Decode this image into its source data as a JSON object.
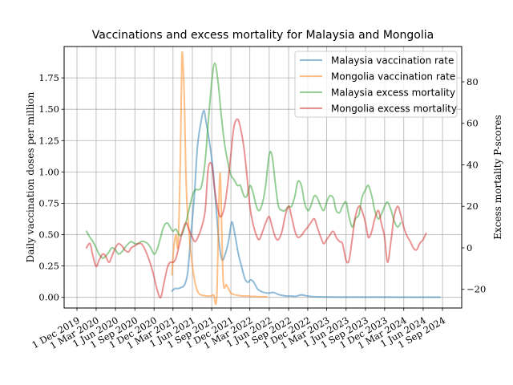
{
  "chart_data": {
    "type": "line",
    "title": "Vaccinations and excess mortality for Malaysia and Mongolia",
    "ylabel": "Daily vaccination doses per million",
    "ylabel_right": "Excess mortality P-scores",
    "ylim": [
      -0.085,
      2.0
    ],
    "ylim_right": [
      -29,
      97
    ],
    "yticks": [
      0.0,
      0.25,
      0.5,
      0.75,
      1.0,
      1.25,
      1.5,
      1.75
    ],
    "ytick_labels": [
      "0.00",
      "0.25",
      "0.50",
      "0.75",
      "1.00",
      "1.25",
      "1.50",
      "1.75"
    ],
    "yticks_right": [
      -20,
      0,
      20,
      40,
      60,
      80
    ],
    "ytick_labels_right": [
      "−20",
      "0",
      "20",
      "40",
      "60",
      "80"
    ],
    "xlim": [
      "2019-10-01",
      "2024-12-01"
    ],
    "xticks": [
      "2019-12-01",
      "2020-03-01",
      "2020-06-01",
      "2020-09-01",
      "2020-12-01",
      "2021-03-01",
      "2021-06-01",
      "2021-09-01",
      "2021-12-01",
      "2022-03-01",
      "2022-06-01",
      "2022-09-01",
      "2022-12-01",
      "2023-03-01",
      "2023-06-01",
      "2023-09-01",
      "2023-12-01",
      "2024-03-01",
      "2024-06-01",
      "2024-09-01"
    ],
    "xtick_labels": [
      "1 Dec 2019",
      "1 Mar 2020",
      "1 Jun 2020",
      "1 Sep 2020",
      "1 Dec 2020",
      "1 Mar 2021",
      "1 Jun 2021",
      "1 Sep 2021",
      "1 Dec 2021",
      "1 Mar 2022",
      "1 Jun 2022",
      "1 Sep 2022",
      "1 Dec 2022",
      "1 Mar 2023",
      "1 Jun 2023",
      "1 Sep 2023",
      "1 Dec 2023",
      "1 Mar 2024",
      "1 Jun 2024",
      "1 Sep 2024"
    ],
    "grid": true,
    "legend_position": "upper right",
    "series": [
      {
        "name": "Malaysia vaccination rate",
        "axis": "left",
        "color": "#1f77b4",
        "x": [
          "2021-02-24",
          "2021-03-10",
          "2021-03-25",
          "2021-04-10",
          "2021-04-25",
          "2021-05-10",
          "2021-05-25",
          "2021-06-10",
          "2021-06-25",
          "2021-07-10",
          "2021-07-25",
          "2021-08-05",
          "2021-08-20",
          "2021-09-05",
          "2021-09-20",
          "2021-10-05",
          "2021-10-20",
          "2021-11-05",
          "2021-11-20",
          "2021-12-05",
          "2021-12-20",
          "2022-01-05",
          "2022-01-20",
          "2022-02-05",
          "2022-02-20",
          "2022-03-05",
          "2022-03-20",
          "2022-04-05",
          "2022-04-20",
          "2022-05-05",
          "2022-05-20",
          "2022-06-05",
          "2022-06-20",
          "2022-07-05",
          "2022-07-20",
          "2022-08-05",
          "2022-08-20",
          "2022-09-05",
          "2022-09-20",
          "2022-10-05",
          "2022-11-01",
          "2022-12-01",
          "2023-01-01",
          "2023-02-01",
          "2023-03-01",
          "2023-04-01",
          "2023-05-01",
          "2023-06-01",
          "2023-07-01",
          "2023-09-01",
          "2023-11-01",
          "2024-01-01",
          "2024-03-01",
          "2024-05-01",
          "2024-07-01",
          "2024-08-20"
        ],
        "y": [
          0.05,
          0.07,
          0.07,
          0.08,
          0.1,
          0.2,
          0.5,
          0.8,
          1.2,
          1.38,
          1.49,
          1.4,
          1.25,
          1.05,
          0.75,
          0.45,
          0.3,
          0.35,
          0.45,
          0.6,
          0.5,
          0.35,
          0.25,
          0.15,
          0.12,
          0.14,
          0.12,
          0.07,
          0.05,
          0.04,
          0.035,
          0.035,
          0.04,
          0.03,
          0.02,
          0.015,
          0.01,
          0.01,
          0.01,
          0.008,
          0.02,
          0.01,
          0.005,
          0.004,
          0.003,
          0.003,
          0.002,
          0.002,
          0.002,
          0.002,
          0.002,
          0.002,
          0.001,
          0.001,
          0.001,
          0.001
        ]
      },
      {
        "name": "Mongolia vaccination rate",
        "axis": "left",
        "color": "#ff7f0e",
        "x": [
          "2021-02-24",
          "2021-03-05",
          "2021-03-15",
          "2021-03-25",
          "2021-04-05",
          "2021-04-12",
          "2021-04-18",
          "2021-04-25",
          "2021-05-01",
          "2021-05-08",
          "2021-05-15",
          "2021-05-25",
          "2021-06-10",
          "2021-06-25",
          "2021-07-10",
          "2021-07-25",
          "2021-08-10",
          "2021-08-25",
          "2021-09-10",
          "2021-09-25",
          "2021-10-10",
          "2021-10-25",
          "2021-11-10",
          "2021-11-25",
          "2021-12-03",
          "2021-12-10",
          "2021-12-20",
          "2022-01-05",
          "2022-01-20",
          "2022-02-05",
          "2022-02-20",
          "2022-03-05",
          "2022-03-20",
          "2022-04-05",
          "2022-04-20",
          "2022-05-05",
          "2022-05-20"
        ],
        "y": [
          0.18,
          0.4,
          0.5,
          0.42,
          1.1,
          1.9,
          1.85,
          1.5,
          1.0,
          0.7,
          0.55,
          0.35,
          0.15,
          0.05,
          0.02,
          0.015,
          0.01,
          0.01,
          0.02,
          0.015,
          0.99,
          0.15,
          0.1,
          0.05,
          0.03,
          0.025,
          0.02,
          0.015,
          0.012,
          0.01,
          0.01,
          0.008,
          0.008,
          0.006,
          0.005,
          0.005,
          0.005
        ]
      },
      {
        "name": "Malaysia excess mortality",
        "axis": "right",
        "color": "#2ca02c",
        "x": [
          "2020-01-15",
          "2020-02-01",
          "2020-02-15",
          "2020-03-01",
          "2020-03-15",
          "2020-04-01",
          "2020-04-15",
          "2020-05-01",
          "2020-05-15",
          "2020-06-01",
          "2020-06-15",
          "2020-07-01",
          "2020-07-15",
          "2020-08-01",
          "2020-08-15",
          "2020-09-01",
          "2020-09-15",
          "2020-10-01",
          "2020-10-15",
          "2020-11-01",
          "2020-11-15",
          "2020-12-01",
          "2020-12-15",
          "2021-01-01",
          "2021-01-15",
          "2021-02-01",
          "2021-02-15",
          "2021-03-01",
          "2021-03-15",
          "2021-04-01",
          "2021-04-15",
          "2021-05-01",
          "2021-05-15",
          "2021-06-01",
          "2021-06-15",
          "2021-07-01",
          "2021-07-15",
          "2021-08-01",
          "2021-08-15",
          "2021-09-01",
          "2021-09-15",
          "2021-10-01",
          "2021-10-15",
          "2021-11-01",
          "2021-11-15",
          "2021-12-01",
          "2021-12-15",
          "2022-01-01",
          "2022-01-15",
          "2022-02-01",
          "2022-02-15",
          "2022-03-01",
          "2022-03-15",
          "2022-04-01",
          "2022-04-15",
          "2022-05-01",
          "2022-05-15",
          "2022-06-01",
          "2022-06-15",
          "2022-07-01",
          "2022-07-15",
          "2022-08-01",
          "2022-08-15",
          "2022-09-01",
          "2022-09-15",
          "2022-10-01",
          "2022-10-15",
          "2022-11-01",
          "2022-11-15",
          "2022-12-01",
          "2022-12-15",
          "2023-01-01",
          "2023-01-15",
          "2023-02-01",
          "2023-02-15",
          "2023-03-01",
          "2023-03-15",
          "2023-04-01",
          "2023-04-15",
          "2023-05-01",
          "2023-05-15",
          "2023-06-01",
          "2023-06-15",
          "2023-07-01",
          "2023-07-15",
          "2023-08-01",
          "2023-08-15",
          "2023-09-01",
          "2023-09-15",
          "2023-10-01",
          "2023-10-15",
          "2023-11-01",
          "2023-11-15",
          "2023-12-01",
          "2023-12-15",
          "2024-01-01",
          "2024-01-15",
          "2024-02-01",
          "2024-02-15"
        ],
        "y": [
          8,
          5,
          3,
          0,
          -3,
          -5,
          -4,
          -2,
          0,
          -1,
          -3,
          -2,
          0,
          2,
          3,
          2,
          2,
          3,
          3,
          2,
          0,
          -3,
          -1,
          5,
          10,
          12,
          10,
          8,
          9,
          6,
          7,
          12,
          18,
          25,
          28,
          28,
          30,
          42,
          60,
          80,
          89,
          80,
          65,
          50,
          42,
          35,
          33,
          30,
          30,
          25,
          25,
          30,
          27,
          20,
          18,
          22,
          30,
          45,
          44,
          30,
          20,
          18,
          18,
          20,
          20,
          25,
          32,
          30,
          22,
          18,
          20,
          25,
          24,
          20,
          18,
          22,
          25,
          24,
          18,
          17,
          20,
          22,
          15,
          10,
          14,
          16,
          24,
          28,
          30,
          25,
          18,
          14,
          16,
          20,
          22,
          18,
          13,
          10,
          12
        ]
      },
      {
        "name": "Mongolia excess mortality",
        "axis": "right",
        "color": "#d62728",
        "x": [
          "2020-01-15",
          "2020-02-01",
          "2020-02-15",
          "2020-03-01",
          "2020-03-15",
          "2020-04-01",
          "2020-04-15",
          "2020-05-01",
          "2020-05-15",
          "2020-06-01",
          "2020-06-15",
          "2020-07-01",
          "2020-07-15",
          "2020-08-01",
          "2020-08-15",
          "2020-09-01",
          "2020-09-15",
          "2020-10-01",
          "2020-10-15",
          "2020-11-01",
          "2020-11-15",
          "2020-12-01",
          "2020-12-15",
          "2021-01-01",
          "2021-01-15",
          "2021-02-01",
          "2021-02-15",
          "2021-03-01",
          "2021-03-15",
          "2021-04-01",
          "2021-04-15",
          "2021-05-01",
          "2021-05-15",
          "2021-06-01",
          "2021-06-15",
          "2021-07-01",
          "2021-07-15",
          "2021-08-01",
          "2021-08-15",
          "2021-09-01",
          "2021-09-15",
          "2021-10-01",
          "2021-10-15",
          "2021-11-01",
          "2021-11-15",
          "2021-12-01",
          "2021-12-15",
          "2022-01-01",
          "2022-01-15",
          "2022-02-01",
          "2022-02-15",
          "2022-03-01",
          "2022-03-15",
          "2022-04-01",
          "2022-04-15",
          "2022-05-01",
          "2022-05-15",
          "2022-06-01",
          "2022-06-15",
          "2022-07-01",
          "2022-07-15",
          "2022-08-01",
          "2022-08-15",
          "2022-09-01",
          "2022-09-15",
          "2022-10-01",
          "2022-10-15",
          "2022-11-01",
          "2022-11-15",
          "2022-12-01",
          "2022-12-15",
          "2023-01-01",
          "2023-01-15",
          "2023-02-01",
          "2023-02-15",
          "2023-03-01",
          "2023-03-15",
          "2023-04-01",
          "2023-04-15",
          "2023-05-01",
          "2023-05-15",
          "2023-06-01",
          "2023-06-15",
          "2023-07-01",
          "2023-07-15",
          "2023-08-01",
          "2023-08-15",
          "2023-09-01",
          "2023-09-15",
          "2023-10-01",
          "2023-10-15",
          "2023-11-01",
          "2023-11-15",
          "2023-12-01",
          "2023-12-15",
          "2024-01-01",
          "2024-01-15",
          "2024-02-01",
          "2024-02-15",
          "2024-03-01",
          "2024-03-15",
          "2024-04-01",
          "2024-04-15",
          "2024-05-01",
          "2024-05-15",
          "2024-06-01",
          "2024-06-15"
        ],
        "y": [
          0,
          2,
          -4,
          -9,
          -6,
          -3,
          -4,
          -7,
          -4,
          0,
          2,
          1,
          -1,
          -2,
          0,
          1,
          2,
          2,
          0,
          -4,
          -8,
          -14,
          -20,
          -24,
          -18,
          -10,
          -7,
          -7,
          -5,
          2,
          8,
          12,
          9,
          5,
          3,
          6,
          10,
          18,
          38,
          40,
          28,
          18,
          15,
          20,
          30,
          45,
          58,
          62,
          58,
          48,
          35,
          20,
          12,
          6,
          4,
          8,
          12,
          15,
          10,
          5,
          4,
          8,
          15,
          20,
          15,
          8,
          5,
          6,
          8,
          10,
          12,
          14,
          10,
          5,
          2,
          4,
          6,
          8,
          5,
          3,
          2,
          -6,
          -6,
          5,
          15,
          20,
          18,
          12,
          5,
          8,
          14,
          18,
          12,
          5,
          -7,
          4,
          15,
          20,
          16,
          10,
          6,
          3,
          0,
          -1,
          2,
          4,
          7
        ]
      }
    ]
  }
}
